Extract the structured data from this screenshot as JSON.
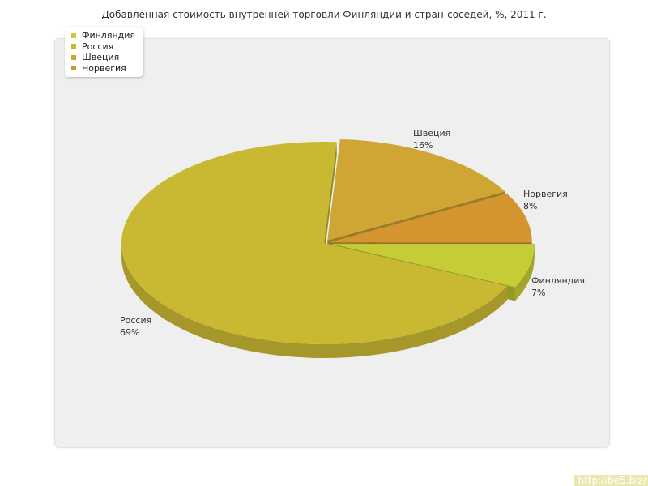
{
  "chart_data": {
    "type": "pie",
    "title": "Добавленная стоимость внутренней торговли Финляндии и стран-соседей, %, 2011 г.",
    "slices": [
      {
        "name": "Финляндия",
        "value": 7,
        "label": "7%",
        "color": "#c6cc35"
      },
      {
        "name": "Россия",
        "value": 69,
        "label": "69%",
        "color": "#c9b832"
      },
      {
        "name": "Швеция",
        "value": 16,
        "label": "16%",
        "color": "#cfa633"
      },
      {
        "name": "Норвегия",
        "value": 8,
        "label": "8%",
        "color": "#d49530"
      }
    ],
    "legend_position": "top-left",
    "style": "3d-exploded"
  },
  "footer": {
    "link_text": "http://be5.biz/"
  }
}
